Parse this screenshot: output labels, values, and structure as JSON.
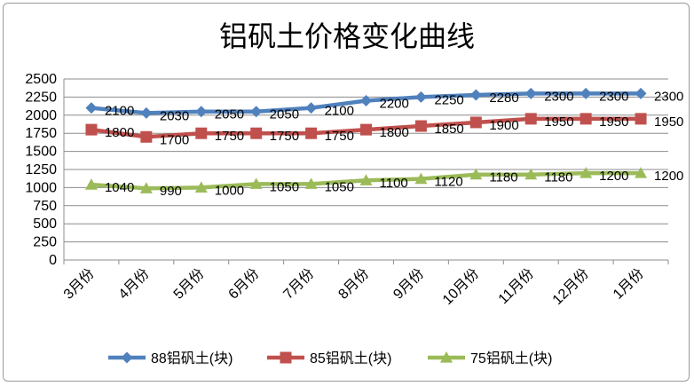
{
  "chart_data": {
    "type": "line",
    "title": "铝矾土价格变化曲线",
    "categories": [
      "3月份",
      "4月份",
      "5月份",
      "6月份",
      "7月份",
      "8月份",
      "9月份",
      "10月份",
      "11月份",
      "12月份",
      "1月份"
    ],
    "ylim": [
      0,
      2500
    ],
    "yticks": [
      0,
      250,
      500,
      750,
      1000,
      1250,
      1500,
      1750,
      2000,
      2250,
      2500
    ],
    "grid": true,
    "legend_position": "bottom",
    "series": [
      {
        "name": "88铝矾土(块)",
        "color": "#4f81bd",
        "marker": "diamond",
        "values": [
          2100,
          2030,
          2050,
          2050,
          2100,
          2200,
          2250,
          2280,
          2300,
          2300,
          2300
        ]
      },
      {
        "name": "85铝矾土(块)",
        "color": "#c0504d",
        "marker": "square",
        "values": [
          1800,
          1700,
          1750,
          1750,
          1750,
          1800,
          1850,
          1900,
          1950,
          1950,
          1950
        ]
      },
      {
        "name": "75铝矾土(块)",
        "color": "#9bbb59",
        "marker": "triangle",
        "values": [
          1040,
          990,
          1000,
          1050,
          1050,
          1100,
          1120,
          1180,
          1180,
          1200,
          1200
        ]
      }
    ]
  }
}
